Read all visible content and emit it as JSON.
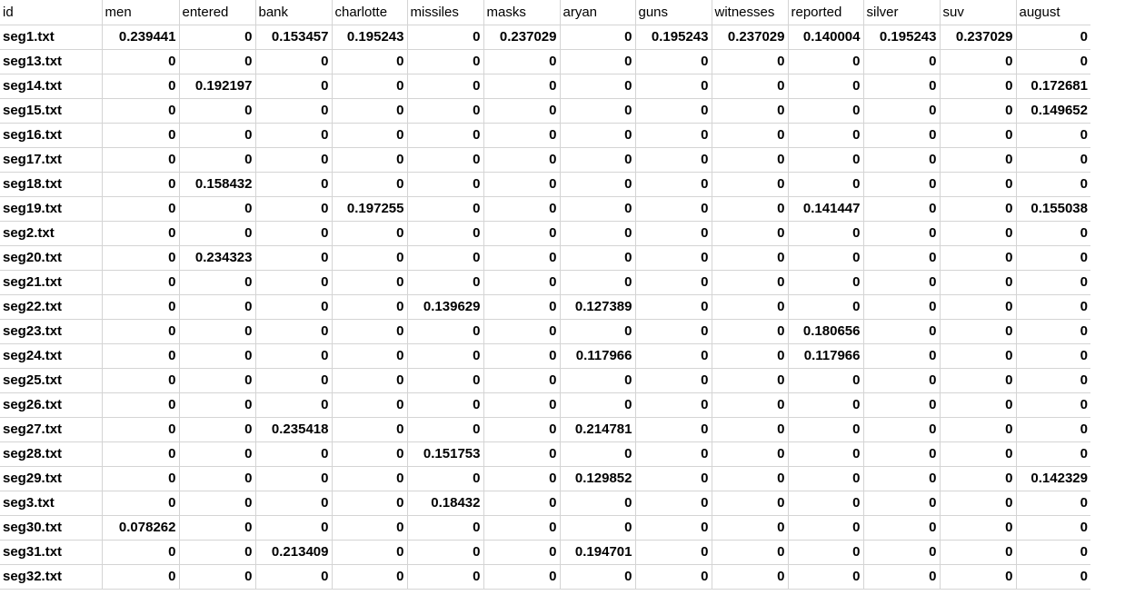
{
  "sheet": {
    "columns": [
      "id",
      "men",
      "entered",
      "bank",
      "charlotte",
      "missiles",
      "masks",
      "aryan",
      "guns",
      "witnesses",
      "reported",
      "silver",
      "suv",
      "august"
    ],
    "rows": [
      {
        "id": "seg1.txt",
        "values": [
          "0.239441",
          "0",
          "0.153457",
          "0.195243",
          "0",
          "0.237029",
          "0",
          "0.195243",
          "0.237029",
          "0.140004",
          "0.195243",
          "0.237029",
          "0"
        ]
      },
      {
        "id": "seg13.txt",
        "values": [
          "0",
          "0",
          "0",
          "0",
          "0",
          "0",
          "0",
          "0",
          "0",
          "0",
          "0",
          "0",
          "0"
        ]
      },
      {
        "id": "seg14.txt",
        "values": [
          "0",
          "0.192197",
          "0",
          "0",
          "0",
          "0",
          "0",
          "0",
          "0",
          "0",
          "0",
          "0",
          "0.172681"
        ]
      },
      {
        "id": "seg15.txt",
        "values": [
          "0",
          "0",
          "0",
          "0",
          "0",
          "0",
          "0",
          "0",
          "0",
          "0",
          "0",
          "0",
          "0.149652"
        ]
      },
      {
        "id": "seg16.txt",
        "values": [
          "0",
          "0",
          "0",
          "0",
          "0",
          "0",
          "0",
          "0",
          "0",
          "0",
          "0",
          "0",
          "0"
        ]
      },
      {
        "id": "seg17.txt",
        "values": [
          "0",
          "0",
          "0",
          "0",
          "0",
          "0",
          "0",
          "0",
          "0",
          "0",
          "0",
          "0",
          "0"
        ]
      },
      {
        "id": "seg18.txt",
        "values": [
          "0",
          "0.158432",
          "0",
          "0",
          "0",
          "0",
          "0",
          "0",
          "0",
          "0",
          "0",
          "0",
          "0"
        ]
      },
      {
        "id": "seg19.txt",
        "values": [
          "0",
          "0",
          "0",
          "0.197255",
          "0",
          "0",
          "0",
          "0",
          "0",
          "0.141447",
          "0",
          "0",
          "0.155038"
        ]
      },
      {
        "id": "seg2.txt",
        "values": [
          "0",
          "0",
          "0",
          "0",
          "0",
          "0",
          "0",
          "0",
          "0",
          "0",
          "0",
          "0",
          "0"
        ]
      },
      {
        "id": "seg20.txt",
        "values": [
          "0",
          "0.234323",
          "0",
          "0",
          "0",
          "0",
          "0",
          "0",
          "0",
          "0",
          "0",
          "0",
          "0"
        ]
      },
      {
        "id": "seg21.txt",
        "values": [
          "0",
          "0",
          "0",
          "0",
          "0",
          "0",
          "0",
          "0",
          "0",
          "0",
          "0",
          "0",
          "0"
        ]
      },
      {
        "id": "seg22.txt",
        "values": [
          "0",
          "0",
          "0",
          "0",
          "0.139629",
          "0",
          "0.127389",
          "0",
          "0",
          "0",
          "0",
          "0",
          "0"
        ]
      },
      {
        "id": "seg23.txt",
        "values": [
          "0",
          "0",
          "0",
          "0",
          "0",
          "0",
          "0",
          "0",
          "0",
          "0.180656",
          "0",
          "0",
          "0"
        ]
      },
      {
        "id": "seg24.txt",
        "values": [
          "0",
          "0",
          "0",
          "0",
          "0",
          "0",
          "0.117966",
          "0",
          "0",
          "0.117966",
          "0",
          "0",
          "0"
        ]
      },
      {
        "id": "seg25.txt",
        "values": [
          "0",
          "0",
          "0",
          "0",
          "0",
          "0",
          "0",
          "0",
          "0",
          "0",
          "0",
          "0",
          "0"
        ]
      },
      {
        "id": "seg26.txt",
        "values": [
          "0",
          "0",
          "0",
          "0",
          "0",
          "0",
          "0",
          "0",
          "0",
          "0",
          "0",
          "0",
          "0"
        ]
      },
      {
        "id": "seg27.txt",
        "values": [
          "0",
          "0",
          "0.235418",
          "0",
          "0",
          "0",
          "0.214781",
          "0",
          "0",
          "0",
          "0",
          "0",
          "0"
        ]
      },
      {
        "id": "seg28.txt",
        "values": [
          "0",
          "0",
          "0",
          "0",
          "0.151753",
          "0",
          "0",
          "0",
          "0",
          "0",
          "0",
          "0",
          "0"
        ]
      },
      {
        "id": "seg29.txt",
        "values": [
          "0",
          "0",
          "0",
          "0",
          "0",
          "0",
          "0.129852",
          "0",
          "0",
          "0",
          "0",
          "0",
          "0.142329"
        ]
      },
      {
        "id": "seg3.txt",
        "values": [
          "0",
          "0",
          "0",
          "0",
          "0.18432",
          "0",
          "0",
          "0",
          "0",
          "0",
          "0",
          "0",
          "0"
        ]
      },
      {
        "id": "seg30.txt",
        "values": [
          "0.078262",
          "0",
          "0",
          "0",
          "0",
          "0",
          "0",
          "0",
          "0",
          "0",
          "0",
          "0",
          "0"
        ]
      },
      {
        "id": "seg31.txt",
        "values": [
          "0",
          "0",
          "0.213409",
          "0",
          "0",
          "0",
          "0.194701",
          "0",
          "0",
          "0",
          "0",
          "0",
          "0"
        ]
      },
      {
        "id": "seg32.txt",
        "values": [
          "0",
          "0",
          "0",
          "0",
          "0",
          "0",
          "0",
          "0",
          "0",
          "0",
          "0",
          "0",
          "0"
        ]
      }
    ]
  }
}
